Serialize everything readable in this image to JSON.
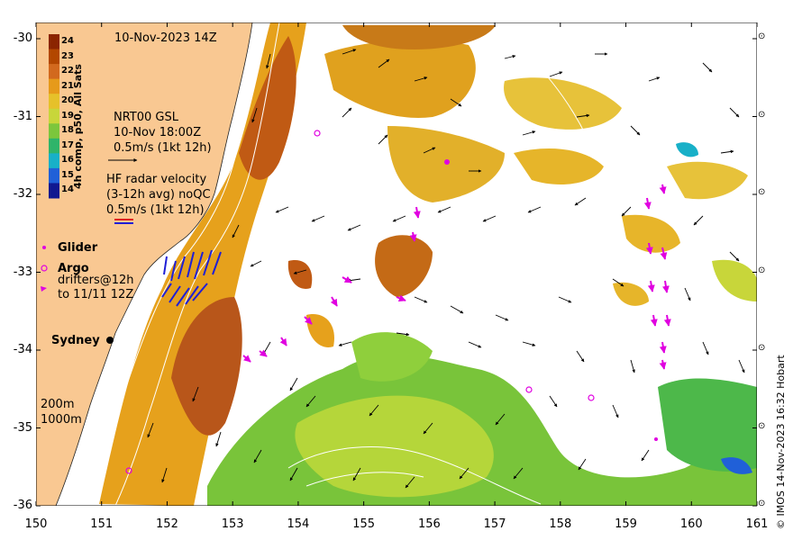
{
  "map": {
    "timestamp_label": "10-Nov-2023 14Z",
    "credit": "© IMOS 14-Nov-2023 16:32 Hobart",
    "x_ticks": [
      "150",
      "151",
      "152",
      "153",
      "154",
      "155",
      "156",
      "157",
      "158",
      "159",
      "160",
      "161"
    ],
    "y_ticks": [
      "-30",
      "-31",
      "-32",
      "-33",
      "-34",
      "-35",
      "-36"
    ],
    "colorbar": {
      "title": "4h comp, p50, All Sats",
      "labels": [
        "24",
        "23",
        "22",
        "21",
        "20",
        "19",
        "18",
        "17",
        "16",
        "15",
        "14"
      ],
      "colors": [
        "#8b2500",
        "#b34700",
        "#d2691e",
        "#e69a1a",
        "#e6c12a",
        "#c8d63a",
        "#7cc63c",
        "#2fb46a",
        "#18b0c8",
        "#2060d8",
        "#101890"
      ]
    },
    "legend": {
      "gsl_line1": "NRT00 GSL",
      "gsl_line2": "10-Nov 18:00Z",
      "gsl_line3": "0.5m/s (1kt 12h)",
      "hf_line1": "HF radar velocity",
      "hf_line2": "(3-12h avg) noQC",
      "hf_line3": "0.5m/s (1kt 12h)",
      "glider": "Glider",
      "argo": "Argo",
      "drifters_line1": "drifters@12h",
      "drifters_line2": "to 11/11 12Z",
      "contour_200": "200m",
      "contour_1000": "1000m"
    },
    "place_label": "Sydney",
    "colors": {
      "land": "#f9c892",
      "ocean_nodata": "#ffffff",
      "hf_radar": "#1f1fd6",
      "drifter": "#e000e0",
      "argo": "#e000e0",
      "contour": "#ffffff"
    }
  }
}
